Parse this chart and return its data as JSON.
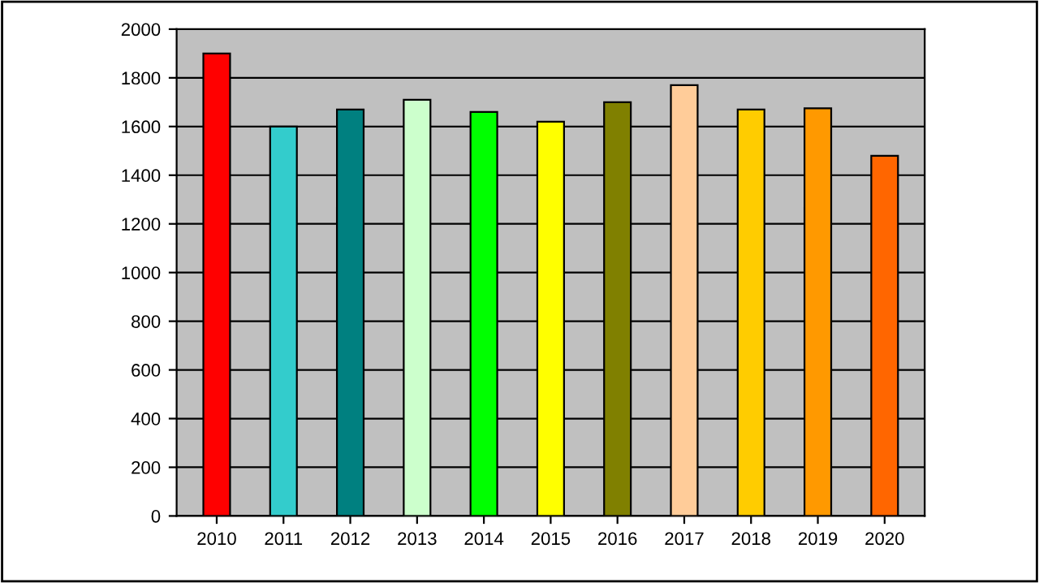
{
  "chart_data": {
    "type": "bar",
    "categories": [
      "2010",
      "2011",
      "2012",
      "2013",
      "2014",
      "2015",
      "2016",
      "2017",
      "2018",
      "2019",
      "2020"
    ],
    "values": [
      1900,
      1600,
      1670,
      1710,
      1660,
      1620,
      1700,
      1770,
      1670,
      1675,
      1480
    ],
    "colors": [
      "#ff0000",
      "#33cccc",
      "#008080",
      "#ccffcc",
      "#00ff00",
      "#ffff00",
      "#808000",
      "#ffcc99",
      "#ffcc00",
      "#ff9900",
      "#ff6600"
    ],
    "ylim": [
      0,
      2000
    ],
    "yticks": [
      0,
      200,
      400,
      600,
      800,
      1000,
      1200,
      1400,
      1600,
      1800,
      2000
    ],
    "grid": "y"
  }
}
